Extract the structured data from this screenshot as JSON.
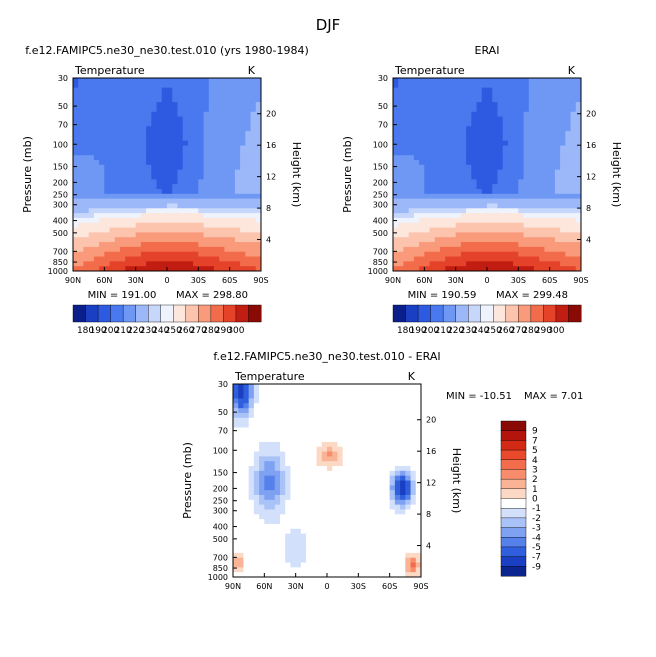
{
  "page_title": "DJF",
  "chart_data": [
    {
      "type": "heatmap",
      "title": "f.e12.FAMIPC5.ne30_ne30.test.010 (yrs 1980-1984)",
      "variable": "Temperature",
      "units": "K",
      "xlabel": "",
      "ylabel": "Pressure (mb)",
      "y2label": "Height (km)",
      "x_ticks": [
        "90N",
        "60N",
        "30N",
        "0",
        "30S",
        "60S",
        "90S"
      ],
      "y_ticks": [
        "30",
        "50",
        "70",
        "100",
        "150",
        "200",
        "250",
        "300",
        "400",
        "500",
        "700",
        "850",
        "1000"
      ],
      "y2_ticks": [
        "4",
        "8",
        "12",
        "16",
        "20"
      ],
      "min_label": "MIN = 191.00",
      "max_label": "MAX = 298.80",
      "colorbar_labels": [
        "180",
        "190",
        "200",
        "210",
        "220",
        "230",
        "240",
        "250",
        "260",
        "270",
        "280",
        "290",
        "300"
      ],
      "colorbar_colors": [
        "#0a1f8c",
        "#1a3fc2",
        "#2d5ae0",
        "#4a78ee",
        "#6f98f4",
        "#9cb8f8",
        "#c7d6fb",
        "#eef3fd",
        "#fde6dc",
        "#fcc3ad",
        "#f99a7a",
        "#f26c4b",
        "#e4432a",
        "#c21d12",
        "#8a0a05"
      ],
      "min": 191.0,
      "max": 298.8
    },
    {
      "type": "heatmap",
      "title": "ERAI",
      "variable": "Temperature",
      "units": "K",
      "xlabel": "",
      "ylabel": "Pressure (mb)",
      "y2label": "Height (km)",
      "x_ticks": [
        "90N",
        "60N",
        "30N",
        "0",
        "30S",
        "60S",
        "90S"
      ],
      "y_ticks": [
        "30",
        "50",
        "70",
        "100",
        "150",
        "200",
        "250",
        "300",
        "400",
        "500",
        "700",
        "850",
        "1000"
      ],
      "y2_ticks": [
        "4",
        "8",
        "12",
        "16",
        "20"
      ],
      "min_label": "MIN = 190.59",
      "max_label": "MAX = 299.48",
      "colorbar_labels": [
        "180",
        "190",
        "200",
        "210",
        "220",
        "230",
        "240",
        "250",
        "260",
        "270",
        "280",
        "290",
        "300"
      ],
      "colorbar_colors": [
        "#0a1f8c",
        "#1a3fc2",
        "#2d5ae0",
        "#4a78ee",
        "#6f98f4",
        "#9cb8f8",
        "#c7d6fb",
        "#eef3fd",
        "#fde6dc",
        "#fcc3ad",
        "#f99a7a",
        "#f26c4b",
        "#e4432a",
        "#c21d12",
        "#8a0a05"
      ],
      "min": 190.59,
      "max": 299.48
    },
    {
      "type": "heatmap",
      "title": "f.e12.FAMIPC5.ne30_ne30.test.010 - ERAI",
      "variable": "Temperature",
      "units": "K",
      "xlabel": "",
      "ylabel": "Pressure (mb)",
      "y2label": "Height (km)",
      "x_ticks": [
        "90N",
        "60N",
        "30N",
        "0",
        "30S",
        "60S",
        "90S"
      ],
      "y_ticks": [
        "30",
        "50",
        "70",
        "100",
        "150",
        "200",
        "250",
        "300",
        "400",
        "500",
        "700",
        "850",
        "1000"
      ],
      "y2_ticks": [
        "4",
        "8",
        "12",
        "16",
        "20"
      ],
      "min_label": "MIN = -10.51",
      "max_label": "MAX =     7.01",
      "colorbar_labels": [
        "9",
        "7",
        "5",
        "4",
        "3",
        "2",
        "1",
        "0",
        "-1",
        "-2",
        "-3",
        "-4",
        "-5",
        "-7",
        "-9"
      ],
      "colorbar_colors": [
        "#8a0a05",
        "#b3150c",
        "#d32a16",
        "#ea4a2c",
        "#f36c4c",
        "#f78d6d",
        "#fab394",
        "#fcd9c4",
        "#ffffff",
        "#d2e0fb",
        "#a9c2f7",
        "#7ea1f1",
        "#5680ea",
        "#2f5fdc",
        "#1a3fc2",
        "#0b248e"
      ],
      "min": -10.51,
      "max": 7.01
    }
  ]
}
